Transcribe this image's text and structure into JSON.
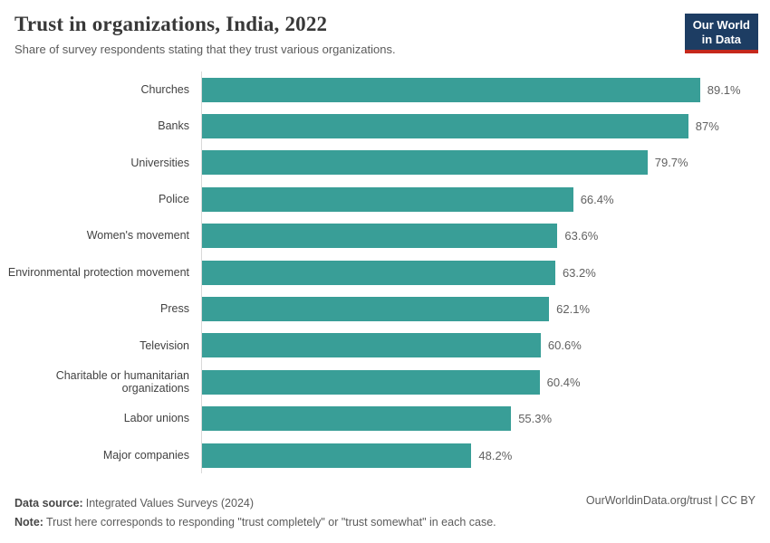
{
  "header": {
    "title": "Trust in organizations, India, 2022",
    "subtitle": "Share of survey respondents stating that they trust various organizations.",
    "logo": {
      "line1": "Our World",
      "line2": "in Data"
    }
  },
  "chart_data": {
    "type": "bar",
    "orientation": "horizontal",
    "title": "Trust in organizations, India, 2022",
    "subtitle": "Share of survey respondents stating that they trust various organizations.",
    "categories": [
      "Churches",
      "Banks",
      "Universities",
      "Police",
      "Women's movement",
      "Environmental protection movement",
      "Press",
      "Television",
      "Charitable or humanitarian organizations",
      "Labor unions",
      "Major companies"
    ],
    "values": [
      89.1,
      87,
      79.7,
      66.4,
      63.6,
      63.2,
      62.1,
      60.6,
      60.4,
      55.3,
      48.2
    ],
    "value_labels": [
      "89.1%",
      "87%",
      "79.7%",
      "66.4%",
      "63.6%",
      "63.2%",
      "62.1%",
      "60.6%",
      "60.4%",
      "55.3%",
      "48.2%"
    ],
    "xlabel": "",
    "ylabel": "",
    "xlim": [
      0,
      100
    ],
    "grid": false,
    "legend": "none",
    "bar_color": "#399e97"
  },
  "footer": {
    "source_label": "Data source:",
    "source_text": "Integrated Values Surveys (2024)",
    "note_label": "Note:",
    "note_text": "Trust here corresponds to responding \"trust completely\" or \"trust somewhat\" in each case.",
    "attribution": "OurWorldinData.org/trust | CC BY"
  },
  "colors": {
    "bar": "#399e97",
    "axis_line": "#d9d9d9",
    "logo_bg": "#1d3d63",
    "logo_accent": "#c5281c"
  }
}
